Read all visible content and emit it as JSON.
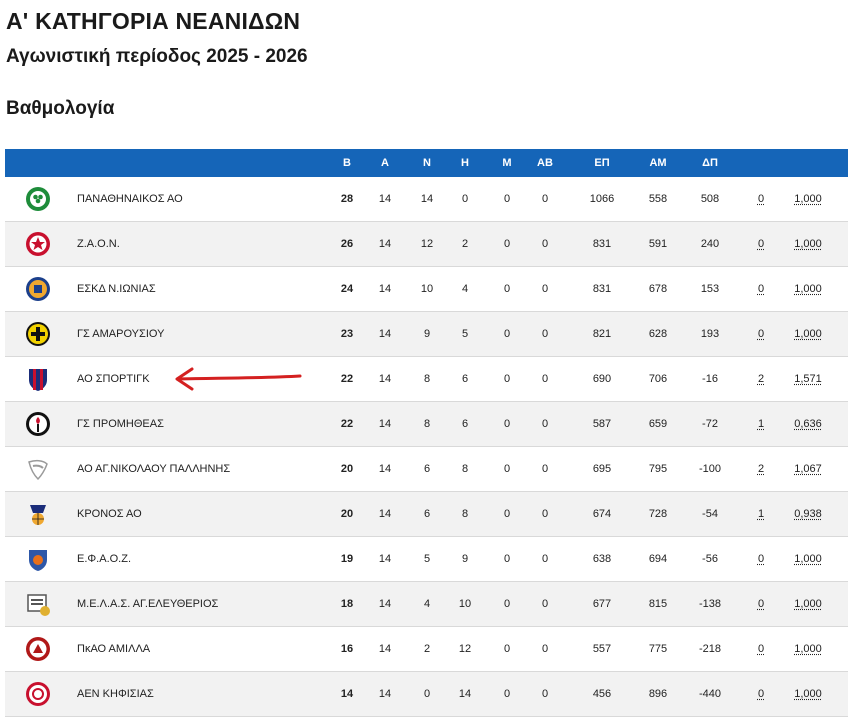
{
  "header": {
    "title": "Α' ΚΑΤΗΓΟΡΙΑ ΝΕΑΝΙΔΩΝ",
    "subtitle": "Αγωνιστική περίοδος 2025 - 2026",
    "section": "Βαθμολογία"
  },
  "table": {
    "columns": [
      "Β",
      "Α",
      "Ν",
      "Η",
      "Μ",
      "ΑΒ",
      "ΕΠ",
      "ΑΜ",
      "ΔΠ"
    ],
    "accent": "#1565b8",
    "rows": [
      {
        "team": "ΠΑΝΑΘΗΝΑΙΚΟΣ ΑΟ",
        "b": "28",
        "a": "14",
        "n": "14",
        "h": "0",
        "m": "0",
        "ab": "0",
        "ep": "1066",
        "am": "558",
        "dp": "508",
        "x": "0",
        "y": "1,000",
        "logo": "clover-logo",
        "c1": "#1e8c3a",
        "c2": "#ffffff"
      },
      {
        "team": "Ζ.Α.Ο.Ν.",
        "b": "26",
        "a": "14",
        "n": "12",
        "h": "2",
        "m": "0",
        "ab": "0",
        "ep": "831",
        "am": "591",
        "dp": "240",
        "x": "0",
        "y": "1,000",
        "logo": "star-logo",
        "c1": "#c8102e",
        "c2": "#ffffff"
      },
      {
        "team": "ΕΣΚΔ Ν.ΙΩΝΙΑΣ",
        "b": "24",
        "a": "14",
        "n": "10",
        "h": "4",
        "m": "0",
        "ab": "0",
        "ep": "831",
        "am": "678",
        "dp": "153",
        "x": "0",
        "y": "1,000",
        "logo": "crest-logo",
        "c1": "#1b3f8b",
        "c2": "#f0a830"
      },
      {
        "team": "ΓΣ ΑΜΑΡΟΥΣΙΟΥ",
        "b": "23",
        "a": "14",
        "n": "9",
        "h": "5",
        "m": "0",
        "ab": "0",
        "ep": "821",
        "am": "628",
        "dp": "193",
        "x": "0",
        "y": "1,000",
        "logo": "cross-logo",
        "c1": "#f2d200",
        "c2": "#111111"
      },
      {
        "team": "ΑΟ ΣΠΟΡΤΙΓΚ",
        "b": "22",
        "a": "14",
        "n": "8",
        "h": "6",
        "m": "0",
        "ab": "0",
        "ep": "690",
        "am": "706",
        "dp": "-16",
        "x": "2",
        "y": "1,571",
        "logo": "shield-logo",
        "c1": "#1b2d7a",
        "c2": "#c8102e"
      },
      {
        "team": "ΓΣ ΠΡΟΜΗΘΕΑΣ",
        "b": "22",
        "a": "14",
        "n": "8",
        "h": "6",
        "m": "0",
        "ab": "0",
        "ep": "587",
        "am": "659",
        "dp": "-72",
        "x": "1",
        "y": "0,636",
        "logo": "torch-logo",
        "c1": "#111111",
        "c2": "#c8102e"
      },
      {
        "team": "ΑΟ ΑΓ.ΝΙΚΟΛΑΟΥ ΠΑΛΛΗΝΗΣ",
        "b": "20",
        "a": "14",
        "n": "6",
        "h": "8",
        "m": "0",
        "ab": "0",
        "ep": "695",
        "am": "795",
        "dp": "-100",
        "x": "2",
        "y": "1,067",
        "logo": "bird-logo",
        "c1": "#9a9a9a",
        "c2": "#ffffff"
      },
      {
        "team": "ΚΡΟΝΟΣ ΑΟ",
        "b": "20",
        "a": "14",
        "n": "6",
        "h": "8",
        "m": "0",
        "ab": "0",
        "ep": "674",
        "am": "728",
        "dp": "-54",
        "x": "1",
        "y": "0,938",
        "logo": "kronos-logo",
        "c1": "#1b2d7a",
        "c2": "#f0a830"
      },
      {
        "team": "Ε.Φ.Α.Ο.Ζ.",
        "b": "19",
        "a": "14",
        "n": "5",
        "h": "9",
        "m": "0",
        "ab": "0",
        "ep": "638",
        "am": "694",
        "dp": "-56",
        "x": "0",
        "y": "1,000",
        "logo": "efaoz-logo",
        "c1": "#2d57a8",
        "c2": "#e8701a"
      },
      {
        "team": "Μ.Ε.Λ.Α.Σ. ΑΓ.ΕΛΕΥΘΕΡΙΟΣ",
        "b": "18",
        "a": "14",
        "n": "4",
        "h": "10",
        "m": "0",
        "ab": "0",
        "ep": "677",
        "am": "815",
        "dp": "-138",
        "x": "0",
        "y": "1,000",
        "logo": "melas-logo",
        "c1": "#555555",
        "c2": "#e0b030"
      },
      {
        "team": "ΠκΑΟ ΑΜΙΛΛΑ",
        "b": "16",
        "a": "14",
        "n": "2",
        "h": "12",
        "m": "0",
        "ab": "0",
        "ep": "557",
        "am": "775",
        "dp": "-218",
        "x": "0",
        "y": "1,000",
        "logo": "amilla-logo",
        "c1": "#b01818",
        "c2": "#ffffff"
      },
      {
        "team": "ΑΕΝ ΚΗΦΙΣΙΑΣ",
        "b": "14",
        "a": "14",
        "n": "0",
        "h": "14",
        "m": "0",
        "ab": "0",
        "ep": "456",
        "am": "896",
        "dp": "-440",
        "x": "0",
        "y": "1,000",
        "logo": "aen-logo",
        "c1": "#c8102e",
        "c2": "#ffffff"
      }
    ]
  },
  "annotation": {
    "arrow_color": "#d42020"
  }
}
